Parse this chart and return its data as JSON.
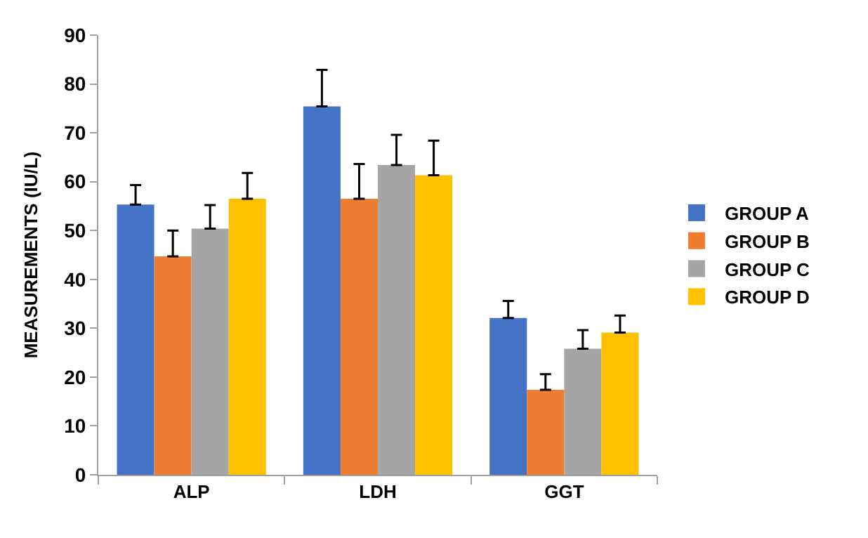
{
  "chart_data": {
    "type": "bar",
    "ylabel": "MEASUREMENTS (IU/L)",
    "categories": [
      "ALP",
      "LDH",
      "GGT"
    ],
    "series": [
      {
        "name": "GROUP A",
        "color": "#4472c4",
        "values": [
          55.3,
          75.4,
          32.1
        ],
        "errors": [
          [
            55.3,
            59.3
          ],
          [
            75.4,
            82.9
          ],
          [
            32.1,
            35.6
          ]
        ]
      },
      {
        "name": "GROUP B",
        "color": "#ed7d31",
        "values": [
          44.7,
          56.5,
          17.4
        ],
        "errors": [
          [
            44.7,
            50.0
          ],
          [
            56.5,
            63.6
          ],
          [
            17.4,
            20.6
          ]
        ]
      },
      {
        "name": "GROUP C",
        "color": "#a5a5a5",
        "values": [
          50.4,
          63.4,
          25.8
        ],
        "errors": [
          [
            50.4,
            55.2
          ],
          [
            63.4,
            69.6
          ],
          [
            25.8,
            29.6
          ]
        ]
      },
      {
        "name": "GROUP D",
        "color": "#ffc000",
        "values": [
          56.5,
          61.3,
          29.1
        ],
        "errors": [
          [
            56.5,
            61.8
          ],
          [
            61.3,
            68.4
          ],
          [
            29.1,
            32.6
          ]
        ]
      }
    ],
    "ylim": [
      0,
      90
    ],
    "yticks": [
      0,
      10,
      20,
      30,
      40,
      50,
      60,
      70,
      80,
      90
    ],
    "legend": "right"
  }
}
